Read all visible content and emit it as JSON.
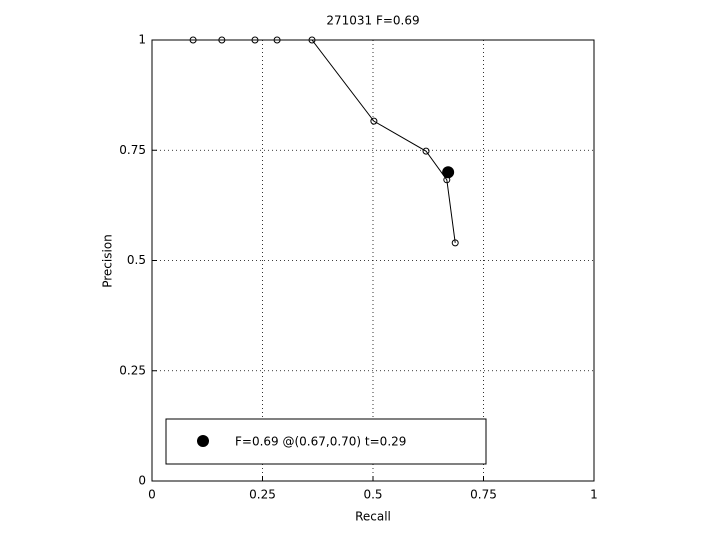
{
  "chart_data": {
    "type": "line",
    "title": "271031 F=0.69",
    "xlabel": "Recall",
    "ylabel": "Precision",
    "x": [
      0.093,
      0.158,
      0.233,
      0.283,
      0.362,
      0.502,
      0.62,
      0.667,
      0.686
    ],
    "values": [
      1,
      1,
      1,
      1,
      1,
      0.816,
      0.748,
      0.683,
      0.54
    ],
    "color": "#000000",
    "highlight": {
      "name": "F=0.69 @(0.67,0.70) t=0.29",
      "x": 0.67,
      "y": 0.7
    },
    "xlim": [
      0,
      1
    ],
    "ylim": [
      0,
      1
    ],
    "xticks": [
      0,
      0.25,
      0.5,
      0.75,
      1
    ],
    "yticks": [
      0,
      0.25,
      0.5,
      0.75,
      1
    ],
    "grid": true,
    "legend": "lower left"
  }
}
